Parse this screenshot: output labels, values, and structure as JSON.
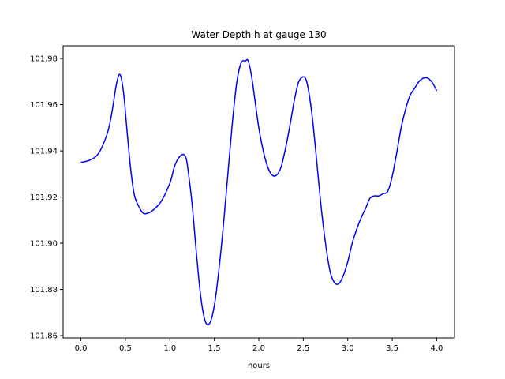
{
  "chart_data": {
    "type": "line",
    "title": "Water Depth h at gauge 130",
    "xlabel": "hours",
    "ylabel": "",
    "xlim": [
      -0.2,
      4.2
    ],
    "ylim": [
      101.859,
      101.9855
    ],
    "grid": false,
    "xticks": [
      0.0,
      0.5,
      1.0,
      1.5,
      2.0,
      2.5,
      3.0,
      3.5,
      4.0
    ],
    "xtick_labels": [
      "0.0",
      "0.5",
      "1.0",
      "1.5",
      "2.0",
      "2.5",
      "3.0",
      "3.5",
      "4.0"
    ],
    "yticks": [
      101.86,
      101.88,
      101.9,
      101.92,
      101.94,
      101.96,
      101.98
    ],
    "ytick_labels": [
      "101.86",
      "101.88",
      "101.90",
      "101.92",
      "101.94",
      "101.96",
      "101.98"
    ],
    "colors": {
      "line": "#0000ff"
    },
    "series": [
      {
        "x": [
          0.0,
          0.1,
          0.2,
          0.3,
          0.35,
          0.4,
          0.44,
          0.48,
          0.52,
          0.56,
          0.6,
          0.65,
          0.7,
          0.75,
          0.8,
          0.9,
          1.0,
          1.05,
          1.1,
          1.15,
          1.18,
          1.2,
          1.25,
          1.3,
          1.35,
          1.4,
          1.45,
          1.5,
          1.55,
          1.6,
          1.65,
          1.7,
          1.75,
          1.8,
          1.85,
          1.88,
          1.92,
          1.96,
          2.0,
          2.05,
          2.1,
          2.15,
          2.2,
          2.25,
          2.3,
          2.35,
          2.4,
          2.45,
          2.51,
          2.55,
          2.6,
          2.65,
          2.7,
          2.75,
          2.8,
          2.85,
          2.9,
          2.95,
          3.0,
          3.05,
          3.1,
          3.15,
          3.2,
          3.25,
          3.3,
          3.35,
          3.4,
          3.45,
          3.5,
          3.55,
          3.6,
          3.65,
          3.7,
          3.75,
          3.8,
          3.85,
          3.9,
          3.93,
          3.96,
          4.0
        ],
        "values": [
          101.935,
          101.936,
          101.939,
          101.948,
          101.957,
          101.969,
          101.973,
          101.965,
          101.948,
          101.932,
          101.921,
          101.916,
          101.913,
          101.913,
          101.914,
          101.918,
          101.926,
          101.933,
          101.937,
          101.9385,
          101.937,
          101.933,
          101.917,
          101.895,
          101.876,
          101.866,
          101.8655,
          101.873,
          101.888,
          101.907,
          101.929,
          101.951,
          101.969,
          101.978,
          101.979,
          101.979,
          101.972,
          101.961,
          101.95,
          101.94,
          101.933,
          101.9295,
          101.9295,
          101.933,
          101.941,
          101.951,
          101.962,
          101.97,
          101.972,
          101.968,
          101.955,
          101.936,
          101.916,
          101.9,
          101.888,
          101.883,
          101.8825,
          101.886,
          101.892,
          101.9,
          101.906,
          101.911,
          101.915,
          101.9195,
          101.9205,
          101.9205,
          101.9215,
          101.9225,
          101.929,
          101.939,
          101.95,
          101.958,
          101.964,
          101.967,
          101.97,
          101.9715,
          101.9715,
          101.9705,
          101.969,
          101.966
        ]
      }
    ]
  }
}
